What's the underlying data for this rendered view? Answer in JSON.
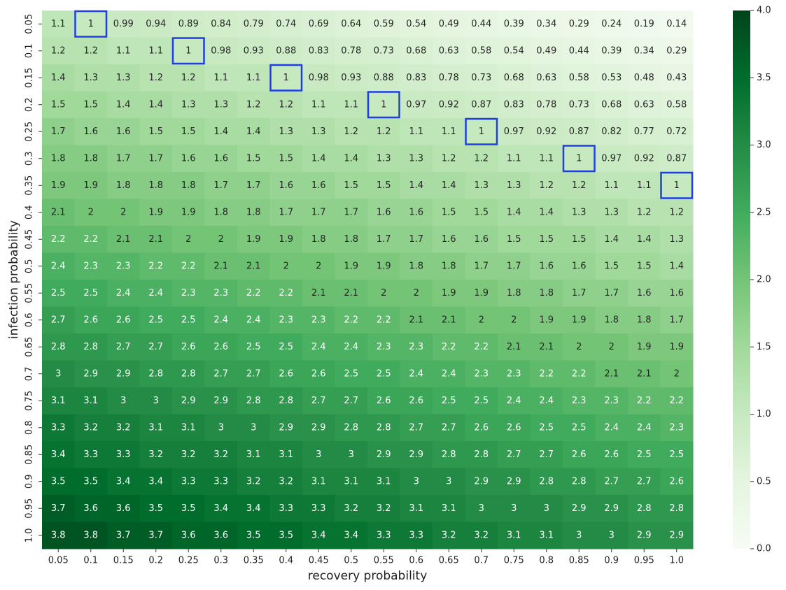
{
  "chart_data": {
    "type": "heatmap",
    "x_label": "recovery probability",
    "y_label": "infection probability",
    "x_categories": [
      "0.05",
      "0.1",
      "0.15",
      "0.2",
      "0.25",
      "0.3",
      "0.35",
      "0.4",
      "0.45",
      "0.5",
      "0.55",
      "0.6",
      "0.65",
      "0.7",
      "0.75",
      "0.8",
      "0.85",
      "0.9",
      "0.95",
      "1.0"
    ],
    "y_categories": [
      "0.05",
      "0.1",
      "0.15",
      "0.2",
      "0.25",
      "0.3",
      "0.35",
      "0.4",
      "0.45",
      "0.5",
      "0.55",
      "0.6",
      "0.65",
      "0.7",
      "0.75",
      "0.8",
      "0.85",
      "0.9",
      "0.95",
      "1.0"
    ],
    "values": [
      [
        1.1,
        1,
        0.99,
        0.94,
        0.89,
        0.84,
        0.79,
        0.74,
        0.69,
        0.64,
        0.59,
        0.54,
        0.49,
        0.44,
        0.39,
        0.34,
        0.29,
        0.24,
        0.19,
        0.14
      ],
      [
        1.2,
        1.2,
        1.1,
        1.1,
        1,
        0.98,
        0.93,
        0.88,
        0.83,
        0.78,
        0.73,
        0.68,
        0.63,
        0.58,
        0.54,
        0.49,
        0.44,
        0.39,
        0.34,
        0.29
      ],
      [
        1.4,
        1.3,
        1.3,
        1.2,
        1.2,
        1.1,
        1.1,
        1,
        0.98,
        0.93,
        0.88,
        0.83,
        0.78,
        0.73,
        0.68,
        0.63,
        0.58,
        0.53,
        0.48,
        0.43
      ],
      [
        1.5,
        1.5,
        1.4,
        1.4,
        1.3,
        1.3,
        1.2,
        1.2,
        1.1,
        1.1,
        1,
        0.97,
        0.92,
        0.87,
        0.83,
        0.78,
        0.73,
        0.68,
        0.63,
        0.58
      ],
      [
        1.7,
        1.6,
        1.6,
        1.5,
        1.5,
        1.4,
        1.4,
        1.3,
        1.3,
        1.2,
        1.2,
        1.1,
        1.1,
        1,
        0.97,
        0.92,
        0.87,
        0.82,
        0.77,
        0.72
      ],
      [
        1.8,
        1.8,
        1.7,
        1.7,
        1.6,
        1.6,
        1.5,
        1.5,
        1.4,
        1.4,
        1.3,
        1.3,
        1.2,
        1.2,
        1.1,
        1.1,
        1,
        0.97,
        0.92,
        0.87
      ],
      [
        1.9,
        1.9,
        1.8,
        1.8,
        1.8,
        1.7,
        1.7,
        1.6,
        1.6,
        1.5,
        1.5,
        1.4,
        1.4,
        1.3,
        1.3,
        1.2,
        1.2,
        1.1,
        1.1,
        1
      ],
      [
        2.1,
        2,
        2,
        1.9,
        1.9,
        1.8,
        1.8,
        1.7,
        1.7,
        1.7,
        1.6,
        1.6,
        1.5,
        1.5,
        1.4,
        1.4,
        1.3,
        1.3,
        1.2,
        1.2
      ],
      [
        2.2,
        2.2,
        2.1,
        2.1,
        2,
        2,
        1.9,
        1.9,
        1.8,
        1.8,
        1.7,
        1.7,
        1.6,
        1.6,
        1.5,
        1.5,
        1.5,
        1.4,
        1.4,
        1.3
      ],
      [
        2.4,
        2.3,
        2.3,
        2.2,
        2.2,
        2.1,
        2.1,
        2,
        2,
        1.9,
        1.9,
        1.8,
        1.8,
        1.7,
        1.7,
        1.6,
        1.6,
        1.5,
        1.5,
        1.4
      ],
      [
        2.5,
        2.5,
        2.4,
        2.4,
        2.3,
        2.3,
        2.2,
        2.2,
        2.1,
        2.1,
        2,
        2,
        1.9,
        1.9,
        1.8,
        1.8,
        1.7,
        1.7,
        1.6,
        1.6
      ],
      [
        2.7,
        2.6,
        2.6,
        2.5,
        2.5,
        2.4,
        2.4,
        2.3,
        2.3,
        2.2,
        2.2,
        2.1,
        2.1,
        2,
        2,
        1.9,
        1.9,
        1.8,
        1.8,
        1.7
      ],
      [
        2.8,
        2.8,
        2.7,
        2.7,
        2.6,
        2.6,
        2.5,
        2.5,
        2.4,
        2.4,
        2.3,
        2.3,
        2.2,
        2.2,
        2.1,
        2.1,
        2,
        2,
        1.9,
        1.9
      ],
      [
        3,
        2.9,
        2.9,
        2.8,
        2.8,
        2.7,
        2.7,
        2.6,
        2.6,
        2.5,
        2.5,
        2.4,
        2.4,
        2.3,
        2.3,
        2.2,
        2.2,
        2.1,
        2.1,
        2
      ],
      [
        3.1,
        3.1,
        3,
        3,
        2.9,
        2.9,
        2.8,
        2.8,
        2.7,
        2.7,
        2.6,
        2.6,
        2.5,
        2.5,
        2.4,
        2.4,
        2.3,
        2.3,
        2.2,
        2.2
      ],
      [
        3.3,
        3.2,
        3.2,
        3.1,
        3.1,
        3,
        3,
        2.9,
        2.9,
        2.8,
        2.8,
        2.7,
        2.7,
        2.6,
        2.6,
        2.5,
        2.5,
        2.4,
        2.4,
        2.3
      ],
      [
        3.4,
        3.3,
        3.3,
        3.2,
        3.2,
        3.2,
        3.1,
        3.1,
        3,
        3,
        2.9,
        2.9,
        2.8,
        2.8,
        2.7,
        2.7,
        2.6,
        2.6,
        2.5,
        2.5
      ],
      [
        3.5,
        3.5,
        3.4,
        3.4,
        3.3,
        3.3,
        3.2,
        3.2,
        3.1,
        3.1,
        3.1,
        3,
        3,
        2.9,
        2.9,
        2.8,
        2.8,
        2.7,
        2.7,
        2.6
      ],
      [
        3.7,
        3.6,
        3.6,
        3.5,
        3.5,
        3.4,
        3.4,
        3.3,
        3.3,
        3.2,
        3.2,
        3.1,
        3.1,
        3,
        3,
        3,
        2.9,
        2.9,
        2.8,
        2.8
      ],
      [
        3.8,
        3.8,
        3.7,
        3.7,
        3.6,
        3.6,
        3.5,
        3.5,
        3.4,
        3.4,
        3.3,
        3.3,
        3.2,
        3.2,
        3.1,
        3.1,
        3,
        3,
        2.9,
        2.9
      ]
    ],
    "colorbar_lim": [
      0,
      4
    ],
    "colorbar_ticks": [
      {
        "value": 0,
        "label": "0.0"
      },
      {
        "value": 0.5,
        "label": "0.5"
      },
      {
        "value": 1,
        "label": "1.0"
      },
      {
        "value": 1.5,
        "label": "1.5"
      },
      {
        "value": 2,
        "label": "2.0"
      },
      {
        "value": 2.5,
        "label": "2.5"
      },
      {
        "value": 3,
        "label": "3.0"
      },
      {
        "value": 3.5,
        "label": "3.5"
      },
      {
        "value": 4,
        "label": "4.0"
      }
    ],
    "colorscale": [
      "#f7fcf5",
      "#e5f5e0",
      "#c7e9c0",
      "#a1d99b",
      "#74c476",
      "#41ab5d",
      "#238b45",
      "#006d2c",
      "#00441b"
    ],
    "highlight": {
      "value": 1,
      "color": "#1f3fe6"
    }
  }
}
